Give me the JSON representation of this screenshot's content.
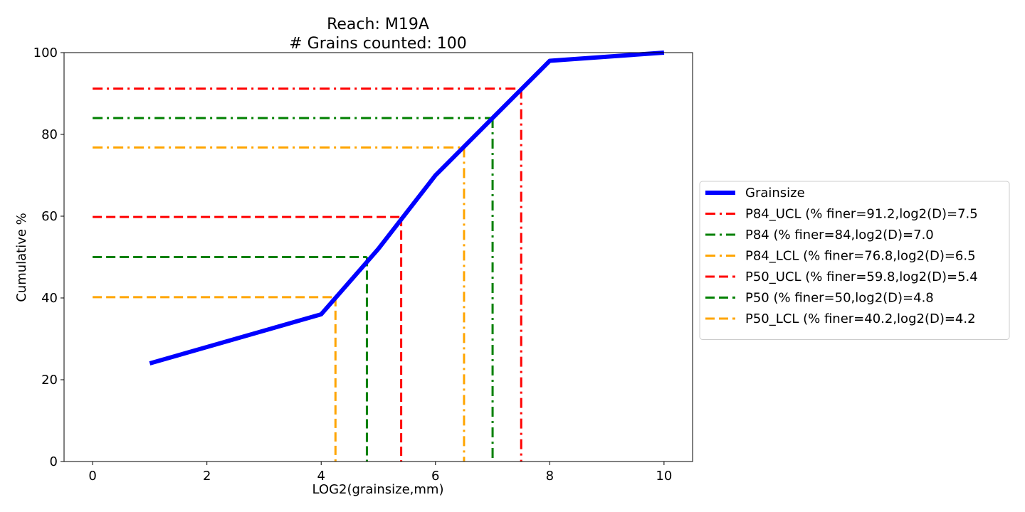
{
  "chart_data": {
    "type": "line",
    "title": "Reach: M19A",
    "subtitle": "# Grains counted: 100",
    "xlabel": "LOG2(grainsize,mm)",
    "ylabel": "Cumulative %",
    "xlim": [
      -0.5,
      10.5
    ],
    "ylim": [
      0,
      100
    ],
    "xticks": [
      0,
      2,
      4,
      6,
      8,
      10
    ],
    "yticks": [
      0,
      20,
      40,
      60,
      80,
      100
    ],
    "grid": false,
    "legend_position": "right",
    "series": [
      {
        "name": "Grainsize",
        "color": "#0000ff",
        "style": "solid",
        "x": [
          1,
          2,
          3,
          4,
          5,
          6,
          7,
          8,
          9,
          10
        ],
        "y": [
          24,
          28,
          32,
          36,
          52,
          70,
          84,
          98,
          99,
          100
        ]
      }
    ],
    "reference_lines": [
      {
        "name": "P84_UCL (% finer=91.2,log2(D)=7.5",
        "color": "#ff0000",
        "style": "dashdot",
        "x": 7.5,
        "y": 91.2
      },
      {
        "name": "P84 (% finer=84,log2(D)=7.0",
        "color": "#008000",
        "style": "dashdot",
        "x": 7.0,
        "y": 84
      },
      {
        "name": "P84_LCL (% finer=76.8,log2(D)=6.5",
        "color": "#ffa500",
        "style": "dashdot",
        "x": 6.5,
        "y": 76.8
      },
      {
        "name": "P50_UCL (% finer=59.8,log2(D)=5.4",
        "color": "#ff0000",
        "style": "dashed",
        "x": 5.4,
        "y": 59.8
      },
      {
        "name": "P50 (% finer=50,log2(D)=4.8",
        "color": "#008000",
        "style": "dashed",
        "x": 4.8,
        "y": 50
      },
      {
        "name": "P50_LCL (% finer=40.2,log2(D)=4.2",
        "color": "#ffa500",
        "style": "dashed",
        "x": 4.25,
        "y": 40.2
      }
    ]
  }
}
